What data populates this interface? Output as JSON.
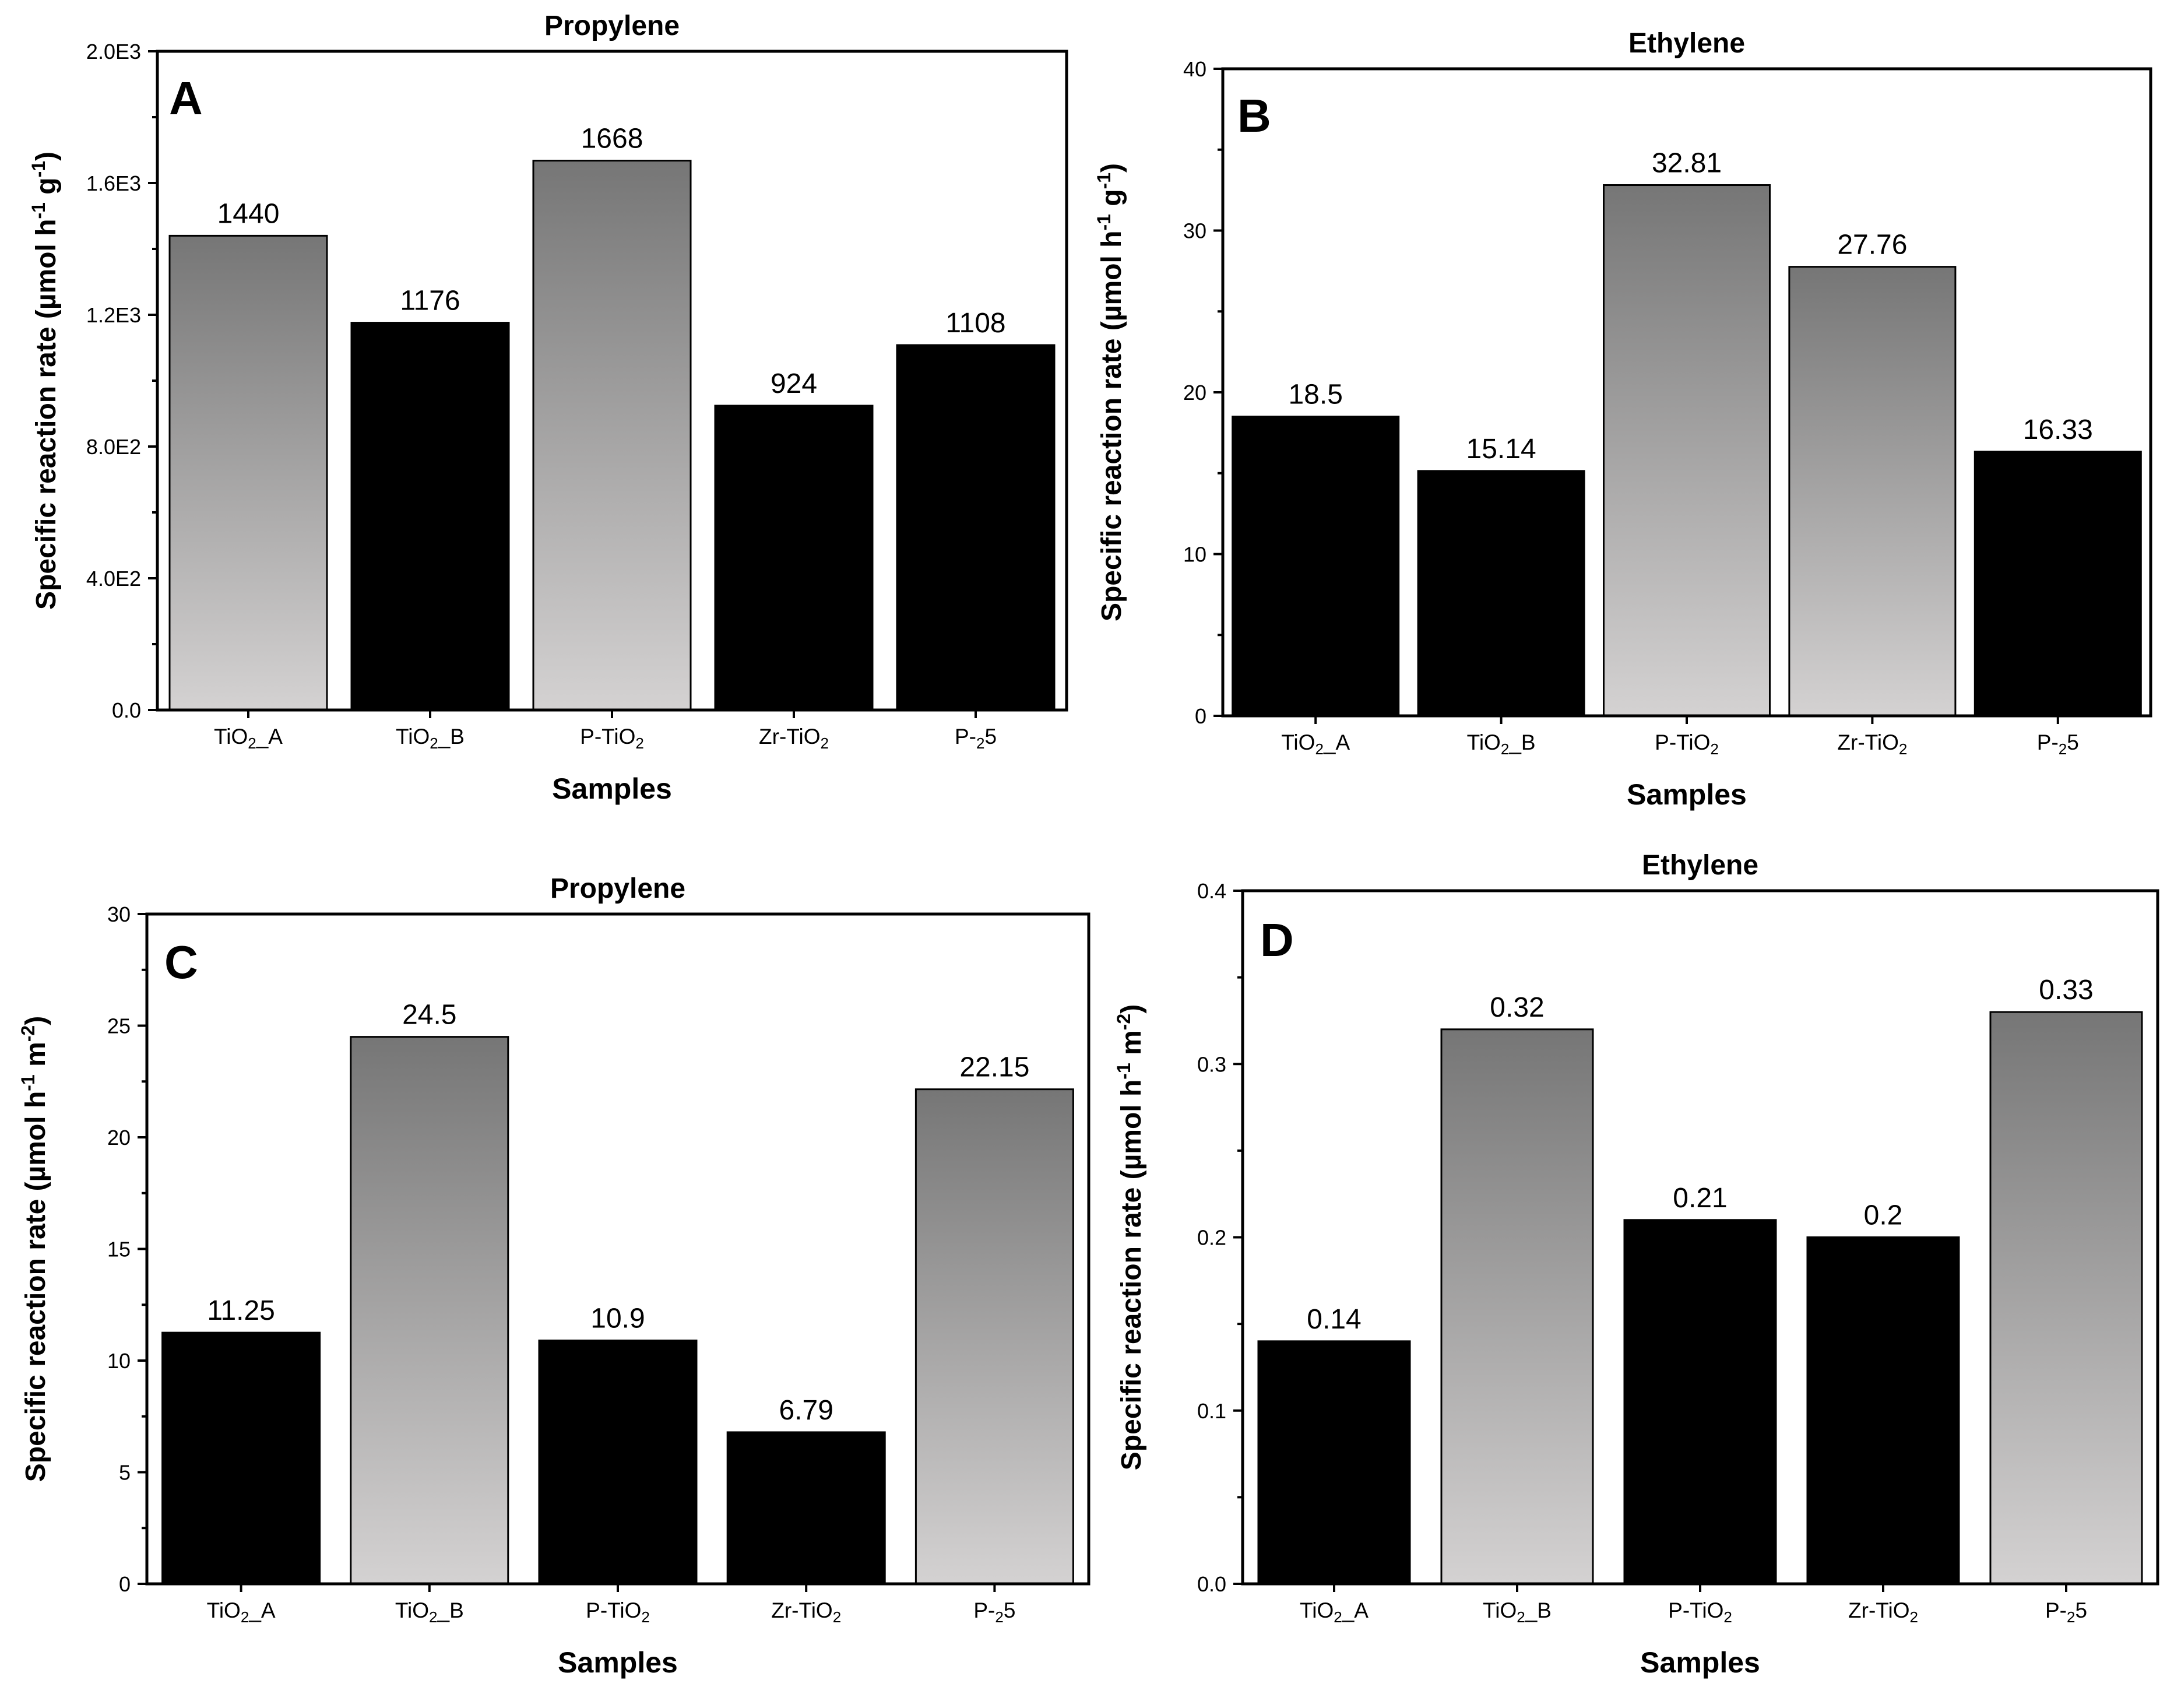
{
  "chart_data": [
    {
      "type": "bar",
      "panel": "A",
      "title": "Propylene",
      "xlabel": "Samples",
      "ylabel": "Specific reaction rate (µmol h-1 g-1)",
      "ylabel_parts": [
        {
          "t": "Specific reaction rate (µmol h"
        },
        {
          "t": "-1",
          "sup": true
        },
        {
          "t": " g"
        },
        {
          "t": "-1",
          "sup": true
        },
        {
          "t": ")"
        }
      ],
      "ylim": [
        0,
        2000
      ],
      "yticks": [
        0,
        400,
        800,
        1200,
        1600,
        2000
      ],
      "ytick_labels": [
        "0.0",
        "4.0E2",
        "8.0E2",
        "1.2E3",
        "1.6E3",
        "2.0E3"
      ],
      "categories": [
        "TiO2_A",
        "TiO2_B",
        "P-TiO2",
        "Zr-TiO2",
        "P-25"
      ],
      "values": [
        1440,
        1176,
        1668,
        924,
        1108
      ],
      "value_labels": [
        "1440",
        "1176",
        "1668",
        "924",
        "1108"
      ],
      "fills": [
        "gradient",
        "black",
        "gradient",
        "black",
        "black"
      ],
      "grid": false
    },
    {
      "type": "bar",
      "panel": "B",
      "title": "Ethylene",
      "xlabel": "Samples",
      "ylabel": "Specific reaction rate (µmol h-1 g-1)",
      "ylabel_parts": [
        {
          "t": "Specific reaction rate (µmol h"
        },
        {
          "t": "-1",
          "sup": true
        },
        {
          "t": " g"
        },
        {
          "t": "-1",
          "sup": true
        },
        {
          "t": ")"
        }
      ],
      "ylim": [
        0,
        40
      ],
      "yticks": [
        0,
        10,
        20,
        30,
        40
      ],
      "ytick_labels": [
        "0",
        "10",
        "20",
        "30",
        "40"
      ],
      "categories": [
        "TiO2_A",
        "TiO2_B",
        "P-TiO2",
        "Zr-TiO2",
        "P-25"
      ],
      "values": [
        18.5,
        15.14,
        32.81,
        27.76,
        16.33
      ],
      "value_labels": [
        "18.5",
        "15.14",
        "32.81",
        "27.76",
        "16.33"
      ],
      "fills": [
        "black",
        "black",
        "gradient",
        "gradient",
        "black"
      ],
      "grid": false
    },
    {
      "type": "bar",
      "panel": "C",
      "title": "Propylene",
      "xlabel": "Samples",
      "ylabel": "Specific reaction rate (µmol h-1 m-2)",
      "ylabel_parts": [
        {
          "t": "Specific reaction rate (µmol h"
        },
        {
          "t": "-1",
          "sup": true
        },
        {
          "t": " m"
        },
        {
          "t": "-2",
          "sup": true
        },
        {
          "t": ")"
        }
      ],
      "ylim": [
        0,
        30
      ],
      "yticks": [
        0,
        5,
        10,
        15,
        20,
        25,
        30
      ],
      "ytick_labels": [
        "0",
        "5",
        "10",
        "15",
        "20",
        "25",
        "30"
      ],
      "categories": [
        "TiO2_A",
        "TiO2_B",
        "P-TiO2",
        "Zr-TiO2",
        "P-25"
      ],
      "values": [
        11.25,
        24.5,
        10.9,
        6.79,
        22.15
      ],
      "value_labels": [
        "11.25",
        "24.5",
        "10.9",
        "6.79",
        "22.15"
      ],
      "fills": [
        "black",
        "gradient",
        "black",
        "black",
        "gradient"
      ],
      "grid": false
    },
    {
      "type": "bar",
      "panel": "D",
      "title": "Ethylene",
      "xlabel": "Samples",
      "ylabel": "Specific reaction rate (µmol h-1 m-2)",
      "ylabel_parts": [
        {
          "t": "Specific reaction rate (µmol h"
        },
        {
          "t": "-1",
          "sup": true
        },
        {
          "t": " m"
        },
        {
          "t": "-2",
          "sup": true
        },
        {
          "t": ")"
        }
      ],
      "ylim": [
        0,
        0.4
      ],
      "yticks": [
        0,
        0.1,
        0.2,
        0.3,
        0.4
      ],
      "ytick_labels": [
        "0.0",
        "0.1",
        "0.2",
        "0.3",
        "0.4"
      ],
      "categories": [
        "TiO2_A",
        "TiO2_B",
        "P-TiO2",
        "Zr-TiO2",
        "P-25"
      ],
      "values": [
        0.14,
        0.32,
        0.21,
        0.2,
        0.33
      ],
      "value_labels": [
        "0.14",
        "0.32",
        "0.21",
        "0.2",
        "0.33"
      ],
      "fills": [
        "black",
        "gradient",
        "black",
        "black",
        "gradient"
      ],
      "grid": false
    }
  ],
  "colors": {
    "bar_solid": "#000000",
    "gradient_top": "#767676",
    "gradient_bottom": "#d4d2d2",
    "axis": "#000000"
  }
}
